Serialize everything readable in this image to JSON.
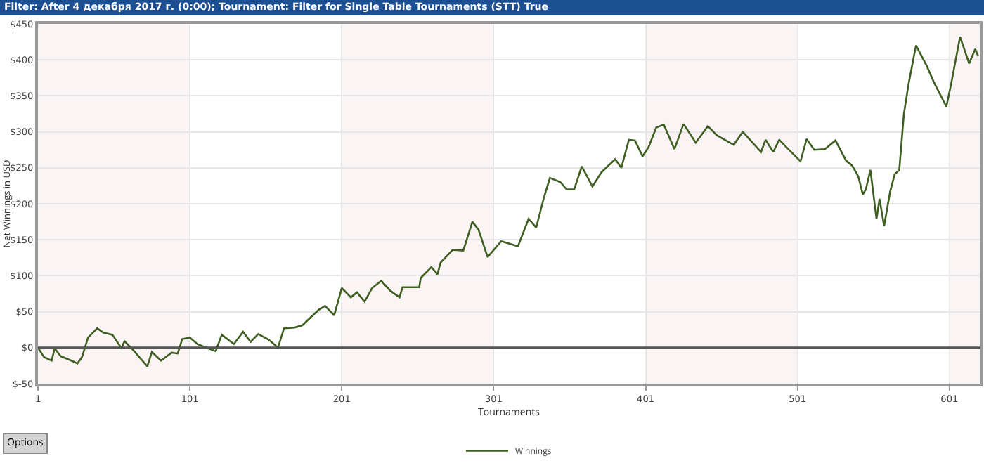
{
  "chart_data": {
    "type": "line",
    "title": "Filter: After 4 декабря 2017 г. (0:00); Tournament: Filter for Single Table Tournaments (STT) True",
    "xlabel": "Tournaments",
    "ylabel": "Net Winnings in USD",
    "series": [
      {
        "name": "Winnings",
        "color": "#3f5f22",
        "x": [
          1,
          5,
          10,
          12,
          16,
          22,
          27,
          30,
          34,
          40,
          44,
          50,
          56,
          58,
          64,
          73,
          76,
          82,
          89,
          93,
          96,
          101,
          106,
          113,
          118,
          122,
          130,
          136,
          141,
          146,
          153,
          159,
          163,
          170,
          175,
          186,
          190,
          196,
          201,
          207,
          211,
          216,
          221,
          227,
          233,
          239,
          241,
          247,
          252,
          253,
          260,
          264,
          266,
          274,
          281,
          287,
          291,
          297,
          306,
          317,
          324,
          329,
          334,
          338,
          345,
          349,
          354,
          359,
          366,
          372,
          381,
          385,
          390,
          394,
          399,
          403,
          408,
          413,
          420,
          426,
          434,
          442,
          448,
          459,
          465,
          477,
          480,
          485,
          489,
          494,
          503,
          507,
          512,
          519,
          526,
          533,
          537,
          541,
          544,
          546,
          549,
          553,
          555,
          558,
          562,
          565,
          568,
          571,
          574,
          579,
          586,
          591,
          599,
          602,
          608,
          614,
          618,
          620
        ],
        "values": [
          0,
          -13,
          -18,
          -1,
          -12,
          -17,
          -22,
          -13,
          14,
          27,
          21,
          18,
          -1,
          9,
          -4,
          -26,
          -6,
          -18,
          -7,
          -8,
          12,
          14,
          5,
          -1,
          -5,
          18,
          5,
          22,
          8,
          19,
          11,
          0,
          27,
          28,
          31,
          53,
          58,
          45,
          83,
          70,
          77,
          64,
          83,
          93,
          79,
          70,
          84,
          84,
          84,
          97,
          112,
          102,
          118,
          136,
          135,
          175,
          164,
          126,
          148,
          141,
          179,
          167,
          208,
          236,
          230,
          220,
          220,
          252,
          224,
          244,
          262,
          250,
          289,
          288,
          266,
          279,
          306,
          310,
          276,
          311,
          285,
          308,
          295,
          282,
          300,
          272,
          289,
          272,
          289,
          278,
          259,
          290,
          275,
          276,
          288,
          260,
          253,
          238,
          213,
          220,
          247,
          179,
          207,
          169,
          217,
          241,
          247,
          324,
          365,
          420,
          392,
          368,
          335,
          365,
          432,
          395,
          415,
          405
        ]
      }
    ],
    "xlim": [
      1,
      621
    ],
    "xticks": [
      1,
      101,
      201,
      301,
      401,
      501,
      601
    ],
    "ylim": [
      -50,
      450
    ],
    "yticks": [
      {
        "value": -50,
        "label": "$-50"
      },
      {
        "value": 0,
        "label": "$0"
      },
      {
        "value": 50,
        "label": "$50"
      },
      {
        "value": 100,
        "label": "$100"
      },
      {
        "value": 150,
        "label": "$150"
      },
      {
        "value": 200,
        "label": "$200"
      },
      {
        "value": 250,
        "label": "$250"
      },
      {
        "value": 300,
        "label": "$300"
      },
      {
        "value": 350,
        "label": "$350"
      },
      {
        "value": 400,
        "label": "$400"
      },
      {
        "value": 450,
        "label": "$450"
      }
    ],
    "grid": true,
    "legend": "bottom",
    "marker": "none",
    "line_style": "solid",
    "ref_lines": [
      {
        "axis": "y",
        "value": 0,
        "color": "#555555",
        "line_style": "solid"
      }
    ],
    "bands": [
      {
        "axis": "x",
        "from": 1,
        "to": 101,
        "color": "#fbf4f4"
      },
      {
        "axis": "x",
        "from": 201,
        "to": 301,
        "color": "#fbf4f4"
      },
      {
        "axis": "x",
        "from": 401,
        "to": 501,
        "color": "#fbf4f4"
      },
      {
        "axis": "x",
        "from": 601,
        "to": 621,
        "color": "#fbf4f4"
      }
    ],
    "annotations": [
      "Options"
    ]
  }
}
